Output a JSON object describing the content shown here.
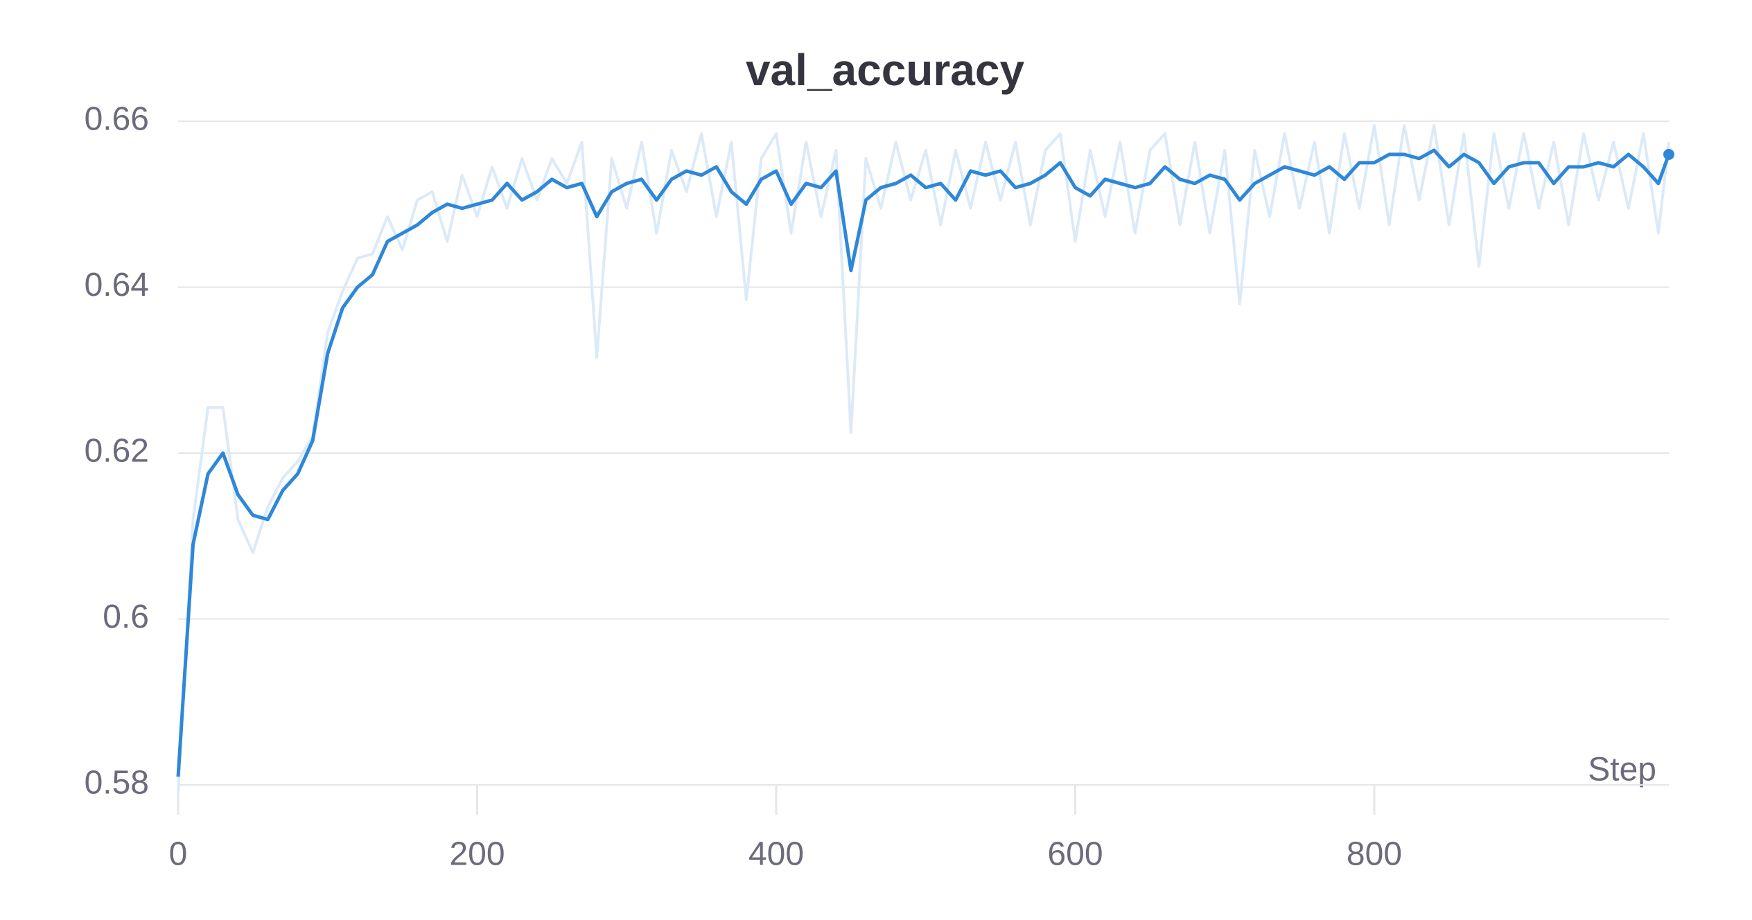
{
  "chart_data": {
    "type": "line",
    "title": "val_accuracy",
    "x_label": "Step",
    "x": [
      0,
      10,
      20,
      30,
      40,
      50,
      60,
      70,
      80,
      90,
      100,
      110,
      120,
      130,
      140,
      150,
      160,
      170,
      180,
      190,
      200,
      210,
      220,
      230,
      240,
      250,
      260,
      270,
      280,
      290,
      300,
      310,
      320,
      330,
      340,
      350,
      360,
      370,
      380,
      390,
      400,
      410,
      420,
      430,
      440,
      450,
      460,
      470,
      480,
      490,
      500,
      510,
      520,
      530,
      540,
      550,
      560,
      570,
      580,
      590,
      600,
      610,
      620,
      630,
      640,
      650,
      660,
      670,
      680,
      690,
      700,
      710,
      720,
      730,
      740,
      750,
      760,
      770,
      780,
      790,
      800,
      810,
      820,
      830,
      840,
      850,
      860,
      870,
      880,
      890,
      900,
      910,
      920,
      930,
      940,
      950,
      960,
      970,
      980,
      990,
      997
    ],
    "series": [
      {
        "color": "#dceaf8",
        "values": [
          0.579,
          0.612,
          0.6255,
          0.6255,
          0.612,
          0.608,
          0.6135,
          0.617,
          0.619,
          0.622,
          0.6345,
          0.6395,
          0.6435,
          0.644,
          0.6485,
          0.6445,
          0.6505,
          0.6515,
          0.6455,
          0.6535,
          0.6485,
          0.6545,
          0.6495,
          0.6555,
          0.6505,
          0.6555,
          0.6525,
          0.6575,
          0.6315,
          0.6555,
          0.6495,
          0.6575,
          0.6465,
          0.6565,
          0.6515,
          0.6585,
          0.6485,
          0.6575,
          0.6385,
          0.6555,
          0.6585,
          0.6465,
          0.6575,
          0.6485,
          0.6565,
          0.6225,
          0.6555,
          0.6495,
          0.6575,
          0.6505,
          0.6565,
          0.6475,
          0.6565,
          0.6495,
          0.6575,
          0.6505,
          0.6575,
          0.6475,
          0.6565,
          0.6585,
          0.6455,
          0.6565,
          0.6485,
          0.6575,
          0.6465,
          0.6565,
          0.6585,
          0.6475,
          0.6575,
          0.6465,
          0.6565,
          0.638,
          0.6565,
          0.6485,
          0.6585,
          0.6495,
          0.6575,
          0.6465,
          0.6585,
          0.6495,
          0.6595,
          0.6475,
          0.6595,
          0.6505,
          0.6595,
          0.6475,
          0.6585,
          0.6425,
          0.6585,
          0.6495,
          0.6585,
          0.6495,
          0.6575,
          0.6475,
          0.6585,
          0.6505,
          0.6575,
          0.6495,
          0.6585,
          0.6465,
          0.6575
        ]
      },
      {
        "color": "#2f87d8",
        "values": [
          0.581,
          0.609,
          0.6175,
          0.62,
          0.615,
          0.6125,
          0.612,
          0.6155,
          0.6175,
          0.6215,
          0.632,
          0.6375,
          0.64,
          0.6415,
          0.6455,
          0.6465,
          0.6475,
          0.649,
          0.65,
          0.6495,
          0.65,
          0.6505,
          0.6525,
          0.6505,
          0.6515,
          0.653,
          0.652,
          0.6525,
          0.6485,
          0.6515,
          0.6525,
          0.653,
          0.6505,
          0.653,
          0.654,
          0.6535,
          0.6545,
          0.6515,
          0.65,
          0.653,
          0.654,
          0.65,
          0.6525,
          0.652,
          0.654,
          0.642,
          0.6505,
          0.652,
          0.6525,
          0.6535,
          0.652,
          0.6525,
          0.6505,
          0.654,
          0.6535,
          0.654,
          0.652,
          0.6525,
          0.6535,
          0.655,
          0.652,
          0.651,
          0.653,
          0.6525,
          0.652,
          0.6525,
          0.6545,
          0.653,
          0.6525,
          0.6535,
          0.653,
          0.6505,
          0.6525,
          0.6535,
          0.6545,
          0.654,
          0.6535,
          0.6545,
          0.653,
          0.655,
          0.655,
          0.656,
          0.656,
          0.6555,
          0.6565,
          0.6545,
          0.656,
          0.655,
          0.6525,
          0.6545,
          0.655,
          0.655,
          0.6525,
          0.6545,
          0.6545,
          0.655,
          0.6545,
          0.656,
          0.6545,
          0.6525,
          0.656
        ]
      }
    ],
    "xlim": [
      0,
      997
    ],
    "ylim": [
      0.579,
      0.661
    ],
    "xticks": [
      0,
      200,
      400,
      600,
      800
    ],
    "yticks": [
      0.58,
      0.6,
      0.62,
      0.64,
      0.66
    ],
    "grid": true
  }
}
